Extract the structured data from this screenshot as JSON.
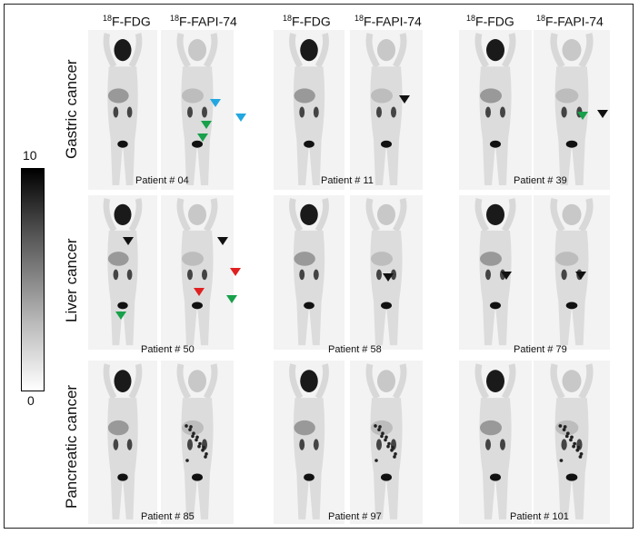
{
  "headers": [
    "18F-FDG",
    "18F-FAPI-74"
  ],
  "header_parts": {
    "iso": "18",
    "fdg": "F-FDG",
    "fapi": "F-FAPI-74"
  },
  "colorbar": {
    "max": "10",
    "min": "0"
  },
  "rows": [
    "Gastric cancer",
    "Liver cancer",
    "Pancreatic cancer"
  ],
  "patients": [
    [
      "Patient # 04",
      "Patient # 11",
      "Patient # 39"
    ],
    [
      "Patient # 50",
      "Patient # 58",
      "Patient # 79"
    ],
    [
      "Patient # 85",
      "Patient # 97",
      "Patient # 101"
    ]
  ],
  "arrow_colors": {
    "blue": "#22a7e0",
    "green": "#18a04a",
    "red": "#e02020",
    "black": "#111111"
  }
}
